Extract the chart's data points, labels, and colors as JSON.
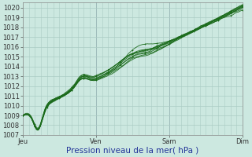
{
  "title": "Pression niveau de la mer( hPa )",
  "bg_color": "#cce8e0",
  "grid_color": "#aaccc4",
  "line_color": "#1a6a1a",
  "ylim": [
    1007,
    1020.5
  ],
  "yticks": [
    1007,
    1008,
    1009,
    1010,
    1011,
    1012,
    1013,
    1014,
    1015,
    1016,
    1017,
    1018,
    1019,
    1020
  ],
  "xtick_labels": [
    "Jeu",
    "Ven",
    "Sam",
    "Dim"
  ],
  "xtick_positions": [
    0,
    96,
    192,
    288
  ],
  "total_points": 289,
  "tick_fontsize": 6.0,
  "xlabel_fontsize": 7.5,
  "xlabel_color": "#223399"
}
